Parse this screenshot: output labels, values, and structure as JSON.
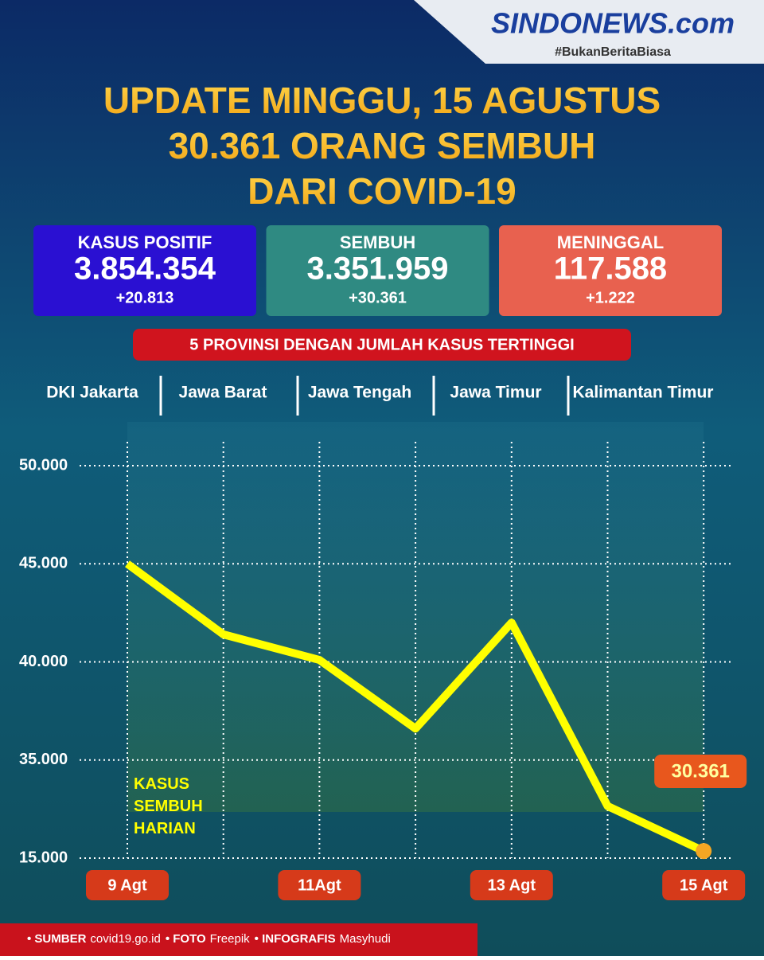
{
  "header": {
    "brand": "SINDONEWS.com",
    "tagline": "#BukanBeritaBiasa",
    "title_lines": [
      "UPDATE MINGGU, 15 AGUSTUS",
      "30.361 ORANG SEMBUH",
      "DARI COVID-19"
    ]
  },
  "stats": [
    {
      "label": "KASUS POSITIF",
      "total": "3.854.354",
      "change": "+20.813",
      "color": "#2a10d2"
    },
    {
      "label": "SEMBUH",
      "total": "3.351.959",
      "change": "+30.361",
      "color": "#2f8a82"
    },
    {
      "label": "MENINGGAL",
      "total": "117.588",
      "change": "+1.222",
      "color": "#e8614f"
    }
  ],
  "provinces": {
    "title": "5 PROVINSI DENGAN JUMLAH KASUS TERTINGGI",
    "names": [
      "DKI Jakarta",
      "Jawa Barat",
      "Jawa Tengah",
      "Jawa Timur",
      "Kalimantan Timur"
    ]
  },
  "chart_data": {
    "type": "line",
    "annotation": "KASUS\nSEMBUH\nHARIAN",
    "categories": [
      "9 Agt",
      null,
      "11Agt",
      null,
      "13  Agt",
      null,
      "15 Agt"
    ],
    "series": [
      {
        "name": "Kasus Sembuh Harian",
        "color": "#ffff00",
        "values": [
          45000,
          41400,
          40100,
          36600,
          42000,
          32650,
          30361
        ],
        "value_labels": [
          null,
          null,
          null,
          null,
          null,
          null,
          "30.361"
        ]
      }
    ],
    "ylim": [
      15000,
      50000
    ],
    "y_break": [
      15000,
      30000
    ],
    "yticks": [
      {
        "value": 50000,
        "label": "50.000"
      },
      {
        "value": 45000,
        "label": "45.000"
      },
      {
        "value": 40000,
        "label": "40.000"
      },
      {
        "value": 35000,
        "label": "35.000"
      },
      {
        "value": 15000,
        "label": "15.000"
      }
    ],
    "grid": true
  },
  "footer": [
    {
      "label": "• SUMBER",
      "text": "covid19.go.id"
    },
    {
      "label": "• FOTO",
      "text": "Freepik"
    },
    {
      "label": "• INFOGRAFIS",
      "text": "Masyhudi"
    }
  ]
}
